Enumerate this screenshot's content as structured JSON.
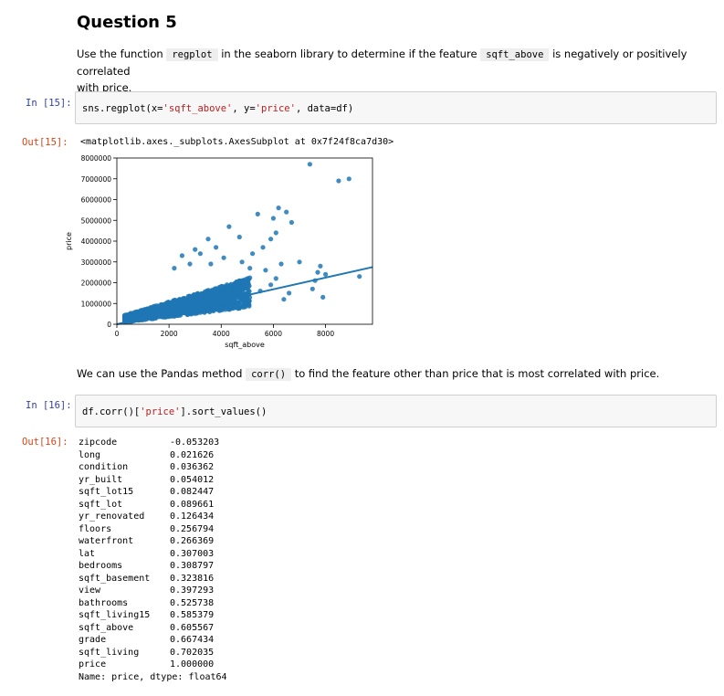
{
  "question": {
    "title": "Question 5",
    "instruction_pre": "Use the function",
    "instruction_code1": "regplot",
    "instruction_mid": "in the seaborn library to determine if the feature",
    "instruction_code2": "sqft_above",
    "instruction_post": "is negatively or positively correlated",
    "instruction_line2": "with price."
  },
  "cell15": {
    "in_prompt": "In [15]:",
    "code_fn": "sns.regplot(x=",
    "code_x": "'sqft_above'",
    "code_mid": ", y=",
    "code_y": "'price'",
    "code_end": ", data=df)",
    "out_prompt": "Out[15]:",
    "output_text": "<matplotlib.axes._subplots.AxesSubplot at 0x7f24f8ca7d30>"
  },
  "chart_data": {
    "type": "scatter",
    "xlabel": "sqft_above",
    "ylabel": "price",
    "xlim": [
      0,
      9800
    ],
    "ylim": [
      0,
      8000000
    ],
    "x_ticks": [
      "0",
      "2000",
      "4000",
      "6000",
      "8000"
    ],
    "x_tick_values": [
      0,
      2000,
      4000,
      6000,
      8000
    ],
    "y_ticks": [
      "0",
      "1000000",
      "2000000",
      "3000000",
      "4000000",
      "5000000",
      "6000000",
      "7000000",
      "8000000"
    ],
    "y_tick_values": [
      0,
      1000000,
      2000000,
      3000000,
      4000000,
      5000000,
      6000000,
      7000000,
      8000000
    ],
    "color": "#1f77b4",
    "regression_line": {
      "x": [
        0,
        9800
      ],
      "y": [
        0,
        2750000
      ]
    },
    "points": [
      [
        7400,
        7700000
      ],
      [
        8500,
        6900000
      ],
      [
        8900,
        7000000
      ],
      [
        5400,
        5300000
      ],
      [
        6500,
        5400000
      ],
      [
        6200,
        5600000
      ],
      [
        6000,
        5100000
      ],
      [
        6700,
        4900000
      ],
      [
        4300,
        4700000
      ],
      [
        6100,
        4400000
      ],
      [
        5900,
        4100000
      ],
      [
        5600,
        3700000
      ],
      [
        7000,
        3000000
      ],
      [
        7800,
        2800000
      ],
      [
        7700,
        2500000
      ],
      [
        7600,
        2100000
      ],
      [
        8000,
        2400000
      ],
      [
        7500,
        1700000
      ],
      [
        7900,
        1300000
      ],
      [
        9300,
        2300000
      ],
      [
        4700,
        4200000
      ],
      [
        3500,
        4100000
      ],
      [
        5200,
        3400000
      ],
      [
        6300,
        2900000
      ],
      [
        5700,
        2600000
      ],
      [
        6100,
        2200000
      ],
      [
        5900,
        1900000
      ],
      [
        5500,
        1600000
      ],
      [
        6400,
        1200000
      ],
      [
        6600,
        1500000
      ],
      [
        2500,
        3300000
      ],
      [
        3000,
        3600000
      ],
      [
        3200,
        3400000
      ],
      [
        3800,
        3700000
      ],
      [
        2800,
        2900000
      ],
      [
        4800,
        3000000
      ],
      [
        5100,
        2700000
      ],
      [
        4100,
        3200000
      ],
      [
        2200,
        2700000
      ],
      [
        3600,
        2900000
      ]
    ]
  },
  "text_corr": {
    "pre": "We can use the Pandas method",
    "code": "corr()",
    "post": "to find the feature other than price that is most correlated with price."
  },
  "cell16": {
    "in_prompt": "In [16]:",
    "code_fn": "df.corr()[",
    "code_arg": "'price'",
    "code_end": "].sort_values()",
    "out_prompt": "Out[16]:",
    "rows": [
      {
        "name": "zipcode",
        "value": "-0.053203"
      },
      {
        "name": "long",
        "value": "0.021626"
      },
      {
        "name": "condition",
        "value": "0.036362"
      },
      {
        "name": "yr_built",
        "value": "0.054012"
      },
      {
        "name": "sqft_lot15",
        "value": "0.082447"
      },
      {
        "name": "sqft_lot",
        "value": "0.089661"
      },
      {
        "name": "yr_renovated",
        "value": "0.126434"
      },
      {
        "name": "floors",
        "value": "0.256794"
      },
      {
        "name": "waterfront",
        "value": "0.266369"
      },
      {
        "name": "lat",
        "value": "0.307003"
      },
      {
        "name": "bedrooms",
        "value": "0.308797"
      },
      {
        "name": "sqft_basement",
        "value": "0.323816"
      },
      {
        "name": "view",
        "value": "0.397293"
      },
      {
        "name": "bathrooms",
        "value": "0.525738"
      },
      {
        "name": "sqft_living15",
        "value": "0.585379"
      },
      {
        "name": "sqft_above",
        "value": "0.605567"
      },
      {
        "name": "grade",
        "value": "0.667434"
      },
      {
        "name": "sqft_living",
        "value": "0.702035"
      },
      {
        "name": "price",
        "value": "1.000000"
      }
    ],
    "footer": "Name: price, dtype: float64"
  }
}
